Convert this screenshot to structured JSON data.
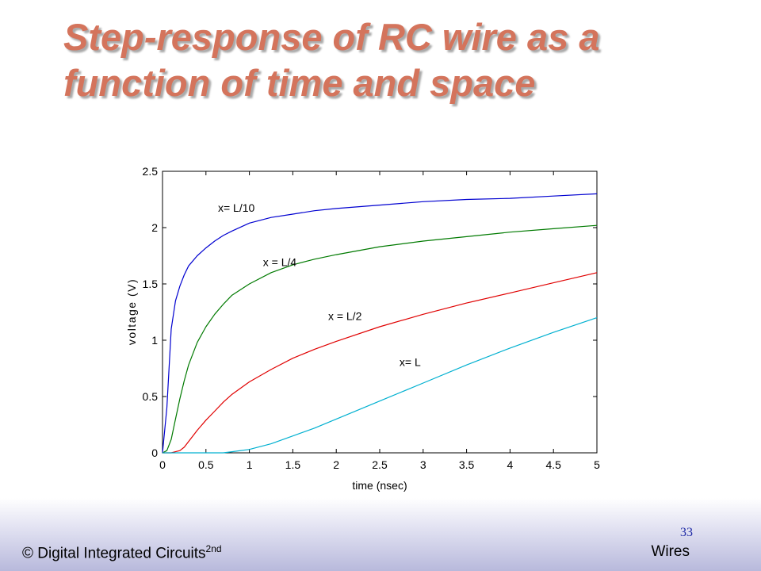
{
  "slide": {
    "title_line1": "Step-response of RC wire as a",
    "title_line2": "function of time and space"
  },
  "footer": {
    "copyright": "© Digital Integrated Circuits",
    "edition_sup": "2nd",
    "section": "Wires",
    "page_number": "33"
  },
  "colors": {
    "title": "#d4745c",
    "series": [
      "#0000d0",
      "#007a00",
      "#e00000",
      "#00b0d0"
    ]
  },
  "chart_data": {
    "type": "line",
    "xlabel": "time (nsec)",
    "ylabel": "voltage (V)",
    "xlim": [
      0,
      5
    ],
    "ylim": [
      0,
      2.5
    ],
    "xticks": [
      0,
      0.5,
      1,
      1.5,
      2,
      2.5,
      3,
      3.5,
      4,
      4.5,
      5
    ],
    "xtick_labels": [
      "0",
      "0.5",
      "1",
      "1.5",
      "2",
      "2.5",
      "3",
      "3.5",
      "4",
      "4.5",
      "5"
    ],
    "yticks": [
      0,
      0.5,
      1,
      1.5,
      2,
      2.5
    ],
    "ytick_labels": [
      "0",
      "0.5",
      "1",
      "1.5",
      "2",
      "2.5"
    ],
    "x": [
      0,
      0.05,
      0.1,
      0.15,
      0.2,
      0.25,
      0.3,
      0.4,
      0.5,
      0.6,
      0.7,
      0.8,
      1.0,
      1.25,
      1.5,
      1.75,
      2.0,
      2.5,
      3.0,
      3.5,
      4.0,
      4.5,
      5.0
    ],
    "series": [
      {
        "name": "x= L/10",
        "annotation": "x= L/10",
        "annotation_at": [
          0.85,
          2.14
        ],
        "values": [
          0,
          0.4,
          1.1,
          1.35,
          1.48,
          1.58,
          1.66,
          1.75,
          1.82,
          1.88,
          1.93,
          1.97,
          2.04,
          2.09,
          2.12,
          2.15,
          2.17,
          2.2,
          2.23,
          2.25,
          2.26,
          2.28,
          2.3
        ]
      },
      {
        "name": "x = L/4",
        "annotation": "x = L/4",
        "annotation_at": [
          1.35,
          1.66
        ],
        "values": [
          0,
          0.02,
          0.12,
          0.3,
          0.48,
          0.64,
          0.78,
          0.98,
          1.12,
          1.23,
          1.32,
          1.4,
          1.5,
          1.6,
          1.67,
          1.72,
          1.76,
          1.83,
          1.88,
          1.92,
          1.96,
          1.99,
          2.02
        ]
      },
      {
        "name": "x = L/2",
        "annotation": "x = L/2",
        "annotation_at": [
          2.1,
          1.18
        ],
        "values": [
          0,
          0,
          0,
          0.01,
          0.02,
          0.05,
          0.1,
          0.2,
          0.29,
          0.37,
          0.45,
          0.52,
          0.63,
          0.74,
          0.84,
          0.92,
          0.99,
          1.12,
          1.23,
          1.33,
          1.42,
          1.51,
          1.6
        ]
      },
      {
        "name": "x= L",
        "annotation": "x= L",
        "annotation_at": [
          2.85,
          0.77
        ],
        "values": [
          0,
          0,
          0,
          0,
          0,
          0,
          0,
          0,
          0,
          0,
          0,
          0.01,
          0.03,
          0.08,
          0.15,
          0.22,
          0.3,
          0.46,
          0.62,
          0.78,
          0.93,
          1.07,
          1.2
        ]
      }
    ],
    "grid": false,
    "legend": "none"
  }
}
